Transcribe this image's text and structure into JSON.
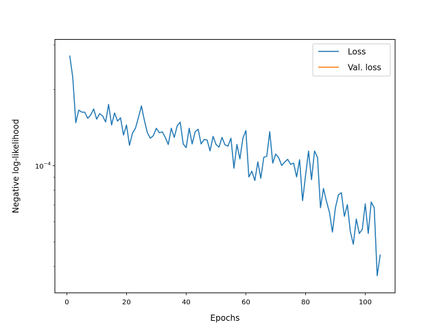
{
  "chart_data": {
    "type": "line",
    "title": "",
    "xlabel": "Epochs",
    "ylabel": "Negative log-likelihood",
    "yscale": "log",
    "xlim": [
      -4,
      110
    ],
    "ylim": [
      3.15e-05,
      0.000315
    ],
    "grid": false,
    "legend_position": "top-right",
    "x_ticks": [
      {
        "value": 0,
        "label": "0"
      },
      {
        "value": 20,
        "label": "20"
      },
      {
        "value": 40,
        "label": "40"
      },
      {
        "value": 60,
        "label": "60"
      },
      {
        "value": 80,
        "label": "80"
      },
      {
        "value": 100,
        "label": "100"
      }
    ],
    "y_ticks": [
      {
        "value": 0.0001,
        "label_base": "10",
        "label_exp": "−4"
      }
    ],
    "series": [
      {
        "name": "Loss",
        "color": "#1f77b4",
        "x": [
          1,
          2,
          3,
          4,
          5,
          6,
          7,
          8,
          9,
          10,
          11,
          12,
          13,
          14,
          15,
          16,
          17,
          18,
          19,
          20,
          21,
          22,
          23,
          24,
          25,
          26,
          27,
          28,
          29,
          30,
          31,
          32,
          33,
          34,
          35,
          36,
          37,
          38,
          39,
          40,
          41,
          42,
          43,
          44,
          45,
          46,
          47,
          48,
          49,
          50,
          51,
          52,
          53,
          54,
          55,
          56,
          57,
          58,
          59,
          60,
          61,
          62,
          63,
          64,
          65,
          66,
          67,
          68,
          69,
          70,
          71,
          72,
          73,
          74,
          75,
          76,
          77,
          78,
          79,
          80,
          81,
          82,
          83,
          84,
          85,
          86,
          87,
          88,
          89,
          90,
          91,
          92,
          93,
          94,
          95,
          96,
          97,
          98,
          99,
          100,
          101,
          102,
          103,
          104,
          105
        ],
        "values": [
          0.000271,
          0.000223,
          0.0001478,
          0.0001658,
          0.0001627,
          0.0001627,
          0.0001539,
          0.0001585,
          0.0001675,
          0.0001527,
          0.0001605,
          0.0001573,
          0.0001488,
          0.0001746,
          0.0001448,
          0.0001615,
          0.0001501,
          0.0001546,
          0.0001321,
          0.0001448,
          0.0001204,
          0.0001344,
          0.0001405,
          0.000155,
          0.0001722,
          0.0001508,
          0.0001349,
          0.0001284,
          0.0001315,
          0.0001405,
          0.0001349,
          0.0001361,
          0.0001293,
          0.0001213,
          0.0001405,
          0.0001293,
          0.0001438,
          0.0001486,
          0.0001219,
          0.0001179,
          0.0001405,
          0.0001219,
          0.0001361,
          0.0001393,
          0.0001219,
          0.0001269,
          0.0001263,
          0.0001145,
          0.0001305,
          0.0001213,
          0.0001184,
          0.0001293,
          0.0001209,
          0.0001195,
          0.0001284,
          9.78e-05,
          0.0001213,
          0.0001064,
          0.0001284,
          0.0001376,
          9.03e-05,
          9.51e-05,
          8.74e-05,
          0.0001036,
          8.92e-05,
          0.0001079,
          0.0001089,
          0.0001362,
          0.0001024,
          0.0001112,
          0.0001075,
          0.0001002,
          0.0001033,
          0.000106,
          0.0001012,
          0.0001024,
          9.03e-05,
          0.0001056,
          7.28e-05,
          9.16e-05,
          0.0001143,
          8.81e-05,
          0.0001143,
          0.0001079,
          6.83e-05,
          8.13e-05,
          7.24e-05,
          6.55e-05,
          5.47e-05,
          6.82e-05,
          7.67e-05,
          7.83e-05,
          6.31e-05,
          7.02e-05,
          5.5e-05,
          4.9e-05,
          6.16e-05,
          5.4e-05,
          5.61e-05,
          7.07e-05,
          5.4e-05,
          7.19e-05,
          6.83e-05,
          3.68e-05,
          4.44e-05
        ]
      },
      {
        "name": "Val. loss",
        "color": "#ff7f0e",
        "x": [],
        "values": []
      }
    ]
  }
}
